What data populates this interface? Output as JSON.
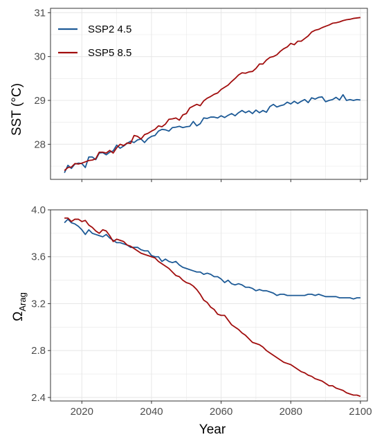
{
  "colors": {
    "ssp245": "#1d5a96",
    "ssp585": "#a10d0d",
    "grid": "#e8e8e8",
    "panel_border": "#333333",
    "tick_text": "#4d4d4d"
  },
  "legend": {
    "items": [
      {
        "label": "SSP2 4.5",
        "color": "#1d5a96"
      },
      {
        "label": "SSP5 8.5",
        "color": "#a10d0d"
      }
    ],
    "placement": "top-left"
  },
  "chart_data": [
    {
      "type": "line",
      "ylabel": "SST (°C)",
      "xlabel": "",
      "xlim": [
        2011,
        2102
      ],
      "ylim": [
        27.2,
        31.1
      ],
      "yticks": [
        28,
        29,
        30,
        31
      ],
      "xticks": [
        2020,
        2040,
        2060,
        2080,
        2100
      ],
      "grid": true,
      "x_start": 2015,
      "x_end": 2100,
      "series": [
        {
          "name": "SSP2 4.5",
          "color": "#1d5a96",
          "values": [
            27.35,
            27.52,
            27.45,
            27.55,
            27.57,
            27.56,
            27.47,
            27.71,
            27.71,
            27.65,
            27.8,
            27.81,
            27.76,
            27.82,
            27.85,
            27.98,
            27.91,
            27.96,
            28.02,
            28.07,
            28.04,
            28.1,
            28.12,
            28.04,
            28.13,
            28.18,
            28.2,
            28.3,
            28.34,
            28.33,
            28.3,
            28.38,
            28.39,
            28.41,
            28.38,
            28.4,
            28.41,
            28.52,
            28.42,
            28.47,
            28.6,
            28.59,
            28.62,
            28.62,
            28.6,
            28.65,
            28.61,
            28.66,
            28.7,
            28.65,
            28.72,
            28.77,
            28.72,
            28.76,
            28.7,
            28.78,
            28.72,
            28.77,
            28.73,
            28.86,
            28.91,
            28.85,
            28.88,
            28.9,
            28.96,
            28.92,
            28.98,
            28.93,
            28.98,
            29.02,
            28.95,
            29.06,
            29.03,
            29.07,
            29.08,
            28.97,
            29.0,
            29.02,
            29.07,
            29.01,
            29.13,
            29.0,
            29.02,
            29.0,
            29.02,
            29.01
          ]
        },
        {
          "name": "SSP5 8.5",
          "color": "#a10d0d",
          "values": [
            27.4,
            27.47,
            27.48,
            27.56,
            27.55,
            27.57,
            27.6,
            27.63,
            27.64,
            27.67,
            27.82,
            27.82,
            27.8,
            27.86,
            27.8,
            27.92,
            28.0,
            27.97,
            28.03,
            28.02,
            28.2,
            28.18,
            28.12,
            28.22,
            28.25,
            28.3,
            28.34,
            28.42,
            28.4,
            28.46,
            28.57,
            28.58,
            28.6,
            28.55,
            28.67,
            28.7,
            28.83,
            28.87,
            28.91,
            28.88,
            28.99,
            29.05,
            29.09,
            29.14,
            29.17,
            29.25,
            29.3,
            29.35,
            29.43,
            29.5,
            29.58,
            29.63,
            29.62,
            29.65,
            29.66,
            29.73,
            29.83,
            29.83,
            29.92,
            29.98,
            30.0,
            30.04,
            30.12,
            30.18,
            30.22,
            30.3,
            30.27,
            30.35,
            30.35,
            30.41,
            30.47,
            30.56,
            30.6,
            30.62,
            30.66,
            30.69,
            30.72,
            30.76,
            30.77,
            30.79,
            30.82,
            30.84,
            30.85,
            30.87,
            30.88,
            30.89
          ]
        }
      ]
    },
    {
      "type": "line",
      "ylabel": "Ω",
      "ylabel_sub": "Arag",
      "xlabel": "Year",
      "xlim": [
        2011,
        2102
      ],
      "ylim": [
        2.37,
        4.0
      ],
      "yticks": [
        2.4,
        2.8,
        3.2,
        3.6,
        4.0
      ],
      "ytick_labels": [
        "2.4",
        "2.8",
        "3.2",
        "3.6",
        "4.0"
      ],
      "xticks": [
        2020,
        2040,
        2060,
        2080,
        2100
      ],
      "grid": true,
      "x_start": 2015,
      "x_end": 2100,
      "series": [
        {
          "name": "SSP2 4.5",
          "color": "#1d5a96",
          "values": [
            3.89,
            3.92,
            3.89,
            3.88,
            3.86,
            3.83,
            3.79,
            3.83,
            3.8,
            3.79,
            3.78,
            3.77,
            3.79,
            3.76,
            3.74,
            3.72,
            3.72,
            3.71,
            3.7,
            3.68,
            3.68,
            3.68,
            3.66,
            3.65,
            3.65,
            3.61,
            3.6,
            3.6,
            3.56,
            3.58,
            3.56,
            3.55,
            3.56,
            3.53,
            3.51,
            3.5,
            3.49,
            3.48,
            3.47,
            3.47,
            3.45,
            3.46,
            3.45,
            3.43,
            3.43,
            3.41,
            3.38,
            3.4,
            3.37,
            3.36,
            3.37,
            3.36,
            3.34,
            3.34,
            3.33,
            3.31,
            3.32,
            3.31,
            3.31,
            3.3,
            3.29,
            3.27,
            3.28,
            3.28,
            3.27,
            3.27,
            3.27,
            3.27,
            3.27,
            3.27,
            3.28,
            3.28,
            3.27,
            3.28,
            3.27,
            3.26,
            3.26,
            3.26,
            3.26,
            3.25,
            3.25,
            3.25,
            3.25,
            3.24,
            3.25,
            3.25
          ]
        },
        {
          "name": "SSP5 8.5",
          "color": "#a10d0d",
          "values": [
            3.93,
            3.93,
            3.9,
            3.92,
            3.92,
            3.9,
            3.91,
            3.87,
            3.85,
            3.82,
            3.8,
            3.83,
            3.82,
            3.78,
            3.73,
            3.75,
            3.74,
            3.73,
            3.7,
            3.69,
            3.67,
            3.65,
            3.63,
            3.62,
            3.61,
            3.6,
            3.59,
            3.56,
            3.54,
            3.52,
            3.5,
            3.47,
            3.44,
            3.43,
            3.4,
            3.38,
            3.37,
            3.35,
            3.32,
            3.28,
            3.23,
            3.21,
            3.17,
            3.15,
            3.11,
            3.1,
            3.1,
            3.06,
            3.02,
            3.0,
            2.98,
            2.95,
            2.93,
            2.9,
            2.87,
            2.86,
            2.85,
            2.83,
            2.8,
            2.78,
            2.76,
            2.74,
            2.72,
            2.7,
            2.69,
            2.68,
            2.66,
            2.64,
            2.62,
            2.61,
            2.59,
            2.58,
            2.56,
            2.55,
            2.54,
            2.52,
            2.5,
            2.5,
            2.48,
            2.47,
            2.46,
            2.44,
            2.43,
            2.42,
            2.42,
            2.41
          ]
        }
      ]
    }
  ]
}
